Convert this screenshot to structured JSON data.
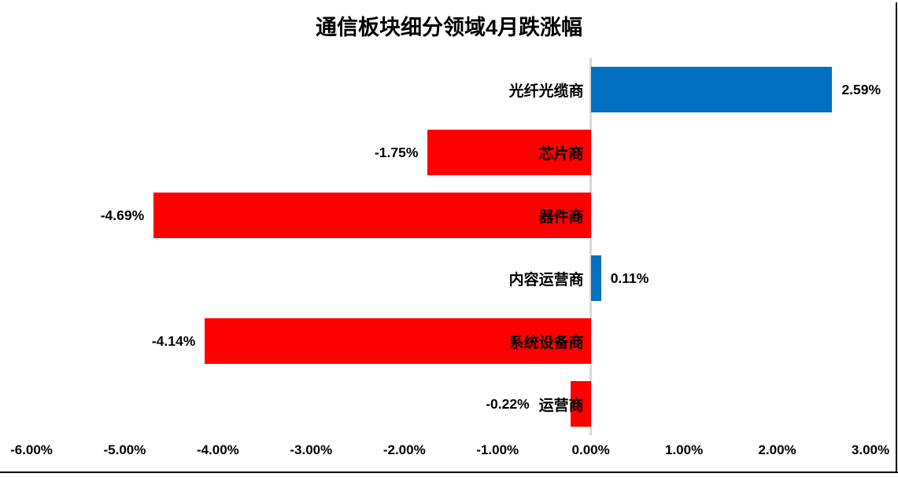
{
  "colors": {
    "positive_bar": "#0070C0",
    "negative_bar": "#FF0000",
    "zero_axis_line": "#D9D9D9",
    "border_line": "#000000",
    "text": "#000000",
    "background": "#FFFFFF"
  },
  "chart_data": {
    "type": "bar",
    "orientation": "horizontal",
    "title": "通信板块细分领域4月跌涨幅",
    "categories": [
      "光纤光缆商",
      "芯片商",
      "器件商",
      "内容运营商",
      "系统设备商",
      "运营商"
    ],
    "values": [
      2.59,
      -1.75,
      -4.69,
      0.11,
      -4.14,
      -0.22
    ],
    "value_labels": [
      "2.59%",
      "-1.75%",
      "-4.69%",
      "0.11%",
      "-4.14%",
      "-0.22%"
    ],
    "series_name": "4月跌涨幅",
    "xlim": [
      -6,
      3
    ],
    "x_ticks": [
      -6,
      -5,
      -4,
      -3,
      -2,
      -1,
      0,
      1,
      2,
      3
    ],
    "x_tick_labels": [
      "-6.00%",
      "-5.00%",
      "-4.00%",
      "-3.00%",
      "-2.00%",
      "-1.00%",
      "0.00%",
      "1.00%",
      "2.00%",
      "3.00%"
    ],
    "grid": false,
    "legend": false,
    "bar_color_rule": "positive=blue, negative=red",
    "category_label_position": "right-aligned just left of zero axis",
    "value_label_position": "outside end of bar"
  }
}
